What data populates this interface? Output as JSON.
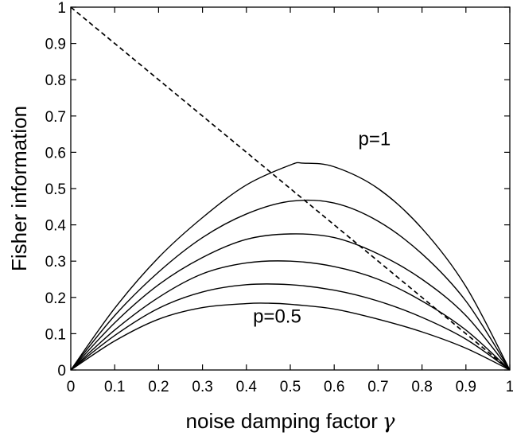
{
  "chart_data": {
    "type": "line",
    "xlabel": "noise damping factor",
    "xlabel_symbol": "γ",
    "ylabel": "Fisher information",
    "xlim": [
      0,
      1
    ],
    "ylim": [
      0,
      1
    ],
    "x_ticks": [
      "0",
      "0.1",
      "0.2",
      "0.3",
      "0.4",
      "0.5",
      "0.6",
      "0.7",
      "0.8",
      "0.9",
      "1"
    ],
    "y_ticks": [
      "0",
      "0.1",
      "0.2",
      "0.3",
      "0.4",
      "0.5",
      "0.6",
      "0.7",
      "0.8",
      "0.9",
      "1"
    ],
    "grid": false,
    "annotations": [
      {
        "text": "p=1",
        "x": 0.655,
        "y": 0.62
      },
      {
        "text": "p=0.5",
        "x": 0.415,
        "y": 0.13
      }
    ],
    "series": [
      {
        "style": "solid",
        "x": [
          0,
          0.1,
          0.2,
          0.3,
          0.4,
          0.5,
          0.53,
          0.6,
          0.7,
          0.8,
          0.9,
          1
        ],
        "y": [
          0,
          0.17,
          0.31,
          0.42,
          0.51,
          0.565,
          0.57,
          0.56,
          0.5,
          0.39,
          0.23,
          0
        ]
      },
      {
        "style": "solid",
        "x": [
          0,
          0.1,
          0.2,
          0.3,
          0.4,
          0.5,
          0.6,
          0.7,
          0.8,
          0.9,
          1
        ],
        "y": [
          0,
          0.15,
          0.27,
          0.365,
          0.43,
          0.465,
          0.46,
          0.41,
          0.32,
          0.19,
          0
        ]
      },
      {
        "style": "solid",
        "x": [
          0,
          0.1,
          0.2,
          0.3,
          0.4,
          0.5,
          0.6,
          0.7,
          0.8,
          0.9,
          1
        ],
        "y": [
          0,
          0.13,
          0.235,
          0.31,
          0.36,
          0.375,
          0.365,
          0.32,
          0.25,
          0.15,
          0
        ]
      },
      {
        "style": "solid",
        "x": [
          0,
          0.1,
          0.2,
          0.3,
          0.4,
          0.5,
          0.6,
          0.7,
          0.8,
          0.9,
          1
        ],
        "y": [
          0,
          0.11,
          0.2,
          0.265,
          0.295,
          0.3,
          0.285,
          0.25,
          0.19,
          0.11,
          0
        ]
      },
      {
        "style": "solid",
        "x": [
          0,
          0.1,
          0.2,
          0.3,
          0.4,
          0.5,
          0.6,
          0.7,
          0.8,
          0.9,
          1
        ],
        "y": [
          0,
          0.095,
          0.17,
          0.215,
          0.235,
          0.235,
          0.22,
          0.19,
          0.145,
          0.085,
          0
        ]
      },
      {
        "style": "solid",
        "x": [
          0,
          0.1,
          0.2,
          0.3,
          0.4,
          0.45,
          0.5,
          0.6,
          0.7,
          0.8,
          0.9,
          1
        ],
        "y": [
          0,
          0.08,
          0.14,
          0.172,
          0.183,
          0.184,
          0.181,
          0.168,
          0.14,
          0.105,
          0.06,
          0
        ]
      },
      {
        "style": "dashed",
        "x": [
          0,
          1
        ],
        "y": [
          1,
          0
        ]
      }
    ]
  }
}
